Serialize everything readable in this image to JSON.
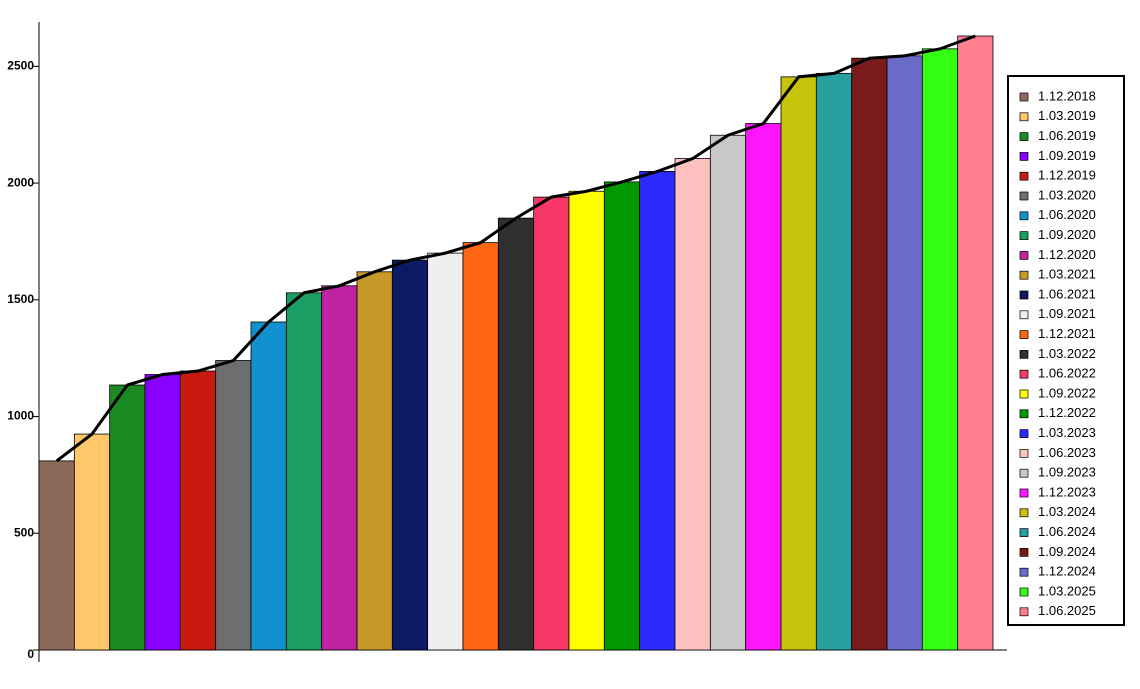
{
  "chart_data": {
    "type": "bar",
    "categories": [
      "1.12.2018",
      "1.03.2019",
      "1.06.2019",
      "1.09.2019",
      "1.12.2019",
      "1.03.2020",
      "1.06.2020",
      "1.09.2020",
      "1.12.2020",
      "1.03.2021",
      "1.06.2021",
      "1.09.2021",
      "1.12.2021",
      "1.03.2022",
      "1.06.2022",
      "1.09.2022",
      "1.12.2022",
      "1.03.2023",
      "1.06.2023",
      "1.09.2023",
      "1.12.2023",
      "1.03.2024",
      "1.06.2024",
      "1.09.2024",
      "1.12.2024",
      "1.03.2025",
      "1.06.2025"
    ],
    "values": [
      810,
      925,
      1135,
      1180,
      1195,
      1240,
      1405,
      1530,
      1560,
      1620,
      1670,
      1700,
      1745,
      1850,
      1940,
      1965,
      2005,
      2050,
      2105,
      2205,
      2255,
      2455,
      2470,
      2535,
      2545,
      2575,
      2630
    ],
    "colors": [
      "#8c6a5a",
      "#fec76a",
      "#1b8a23",
      "#8a00ff",
      "#c8190e",
      "#6e6e6e",
      "#1192cf",
      "#1a9e63",
      "#c023a0",
      "#c7982a",
      "#0c1a66",
      "#efefef",
      "#ff6611",
      "#2f2f2f",
      "#f73866",
      "#ffff00",
      "#009a00",
      "#2a2aff",
      "#ffc0c0",
      "#c8c8c8",
      "#ff16ff",
      "#c7c30a",
      "#27a19f",
      "#7a1b1b",
      "#6a6ac8",
      "#33ff12",
      "#ff7f8e"
    ],
    "trend_line_color": "#000000",
    "ylim": [
      0,
      2690
    ],
    "yticks": [
      0,
      500,
      1000,
      1500,
      2000,
      2500
    ],
    "legend": "right"
  }
}
